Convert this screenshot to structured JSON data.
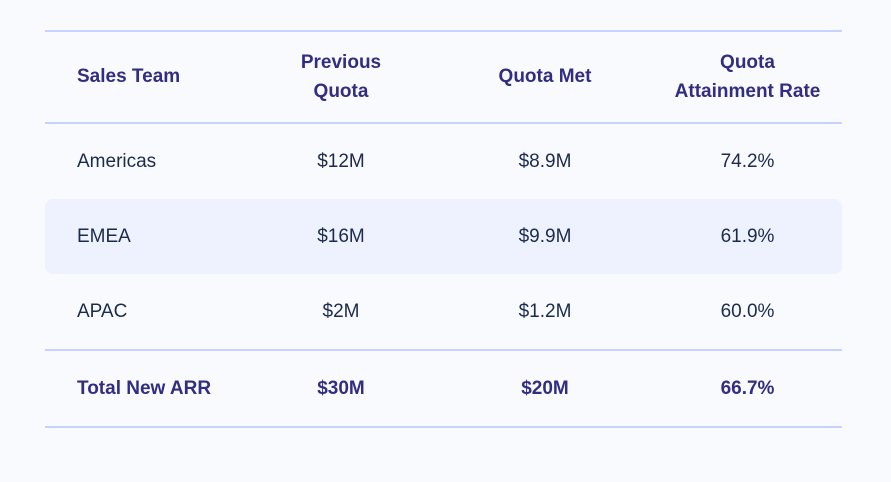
{
  "colors": {
    "background": "#F9FAFE",
    "row_stripe": "#EEF2FF",
    "rule_line": "#C7D2FE",
    "header_text": "#312E81",
    "body_text": "#1B2B4E"
  },
  "table": {
    "columns": [
      {
        "label": "Sales Team"
      },
      {
        "label": "Previous\nQuota"
      },
      {
        "label": "Quota Met"
      },
      {
        "label": "Quota\nAttainment Rate"
      }
    ],
    "rows": [
      {
        "team": "Americas",
        "previous_quota": "$12M",
        "quota_met": "$8.9M",
        "attainment_rate": "74.2%"
      },
      {
        "team": "EMEA",
        "previous_quota": "$16M",
        "quota_met": "$9.9M",
        "attainment_rate": "61.9%"
      },
      {
        "team": "APAC",
        "previous_quota": "$2M",
        "quota_met": "$1.2M",
        "attainment_rate": "60.0%"
      }
    ],
    "total": {
      "team": "Total New ARR",
      "previous_quota": "$30M",
      "quota_met": "$20M",
      "attainment_rate": "66.7%"
    }
  },
  "chart_data": {
    "type": "table",
    "title": "",
    "columns": [
      "Sales Team",
      "Previous Quota",
      "Quota Met",
      "Quota Attainment Rate"
    ],
    "rows": [
      [
        "Americas",
        "$12M",
        "$8.9M",
        "74.2%"
      ],
      [
        "EMEA",
        "$16M",
        "$9.9M",
        "61.9%"
      ],
      [
        "APAC",
        "$2M",
        "$1.2M",
        "60.0%"
      ],
      [
        "Total New ARR",
        "$30M",
        "$20M",
        "66.7%"
      ]
    ],
    "series": [
      {
        "name": "Previous Quota ($M)",
        "values": [
          12,
          16,
          2
        ]
      },
      {
        "name": "Quota Met ($M)",
        "values": [
          8.9,
          9.9,
          1.2
        ]
      },
      {
        "name": "Quota Attainment Rate (%)",
        "values": [
          74.2,
          61.9,
          60.0
        ]
      }
    ],
    "categories": [
      "Americas",
      "EMEA",
      "APAC"
    ],
    "totals": {
      "previous_quota_m": 30,
      "quota_met_m": 20,
      "attainment_rate_pct": 66.7
    }
  }
}
